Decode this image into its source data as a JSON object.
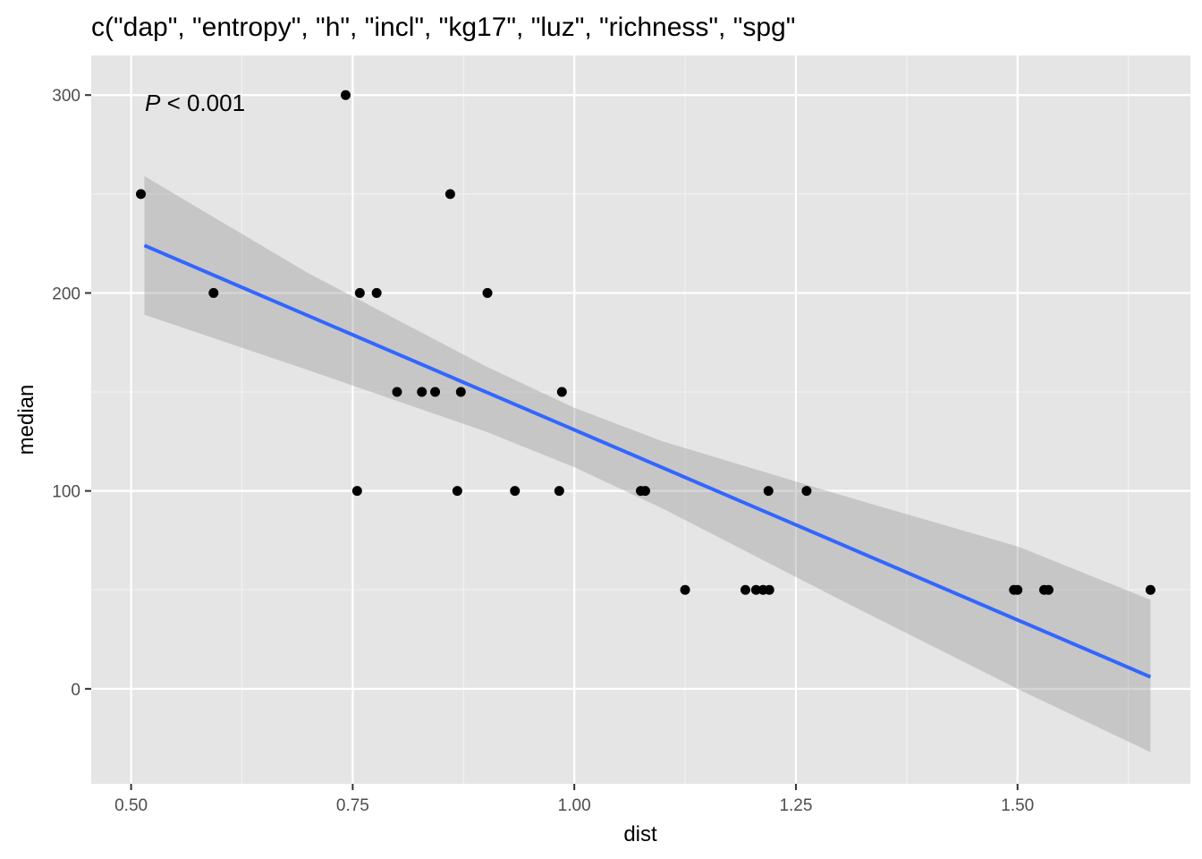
{
  "chart_data": {
    "type": "scatter",
    "title": "c(\"dap\", \"entropy\", \"h\", \"incl\", \"kg17\", \"luz\", \"richness\", \"spg\"",
    "xlabel": "dist",
    "ylabel": "median",
    "xlim": [
      0.455,
      1.695
    ],
    "ylim": [
      -48,
      320
    ],
    "x_ticks": [
      0.5,
      0.75,
      1.0,
      1.25,
      1.5
    ],
    "x_tick_labels": [
      "0.50",
      "0.75",
      "1.00",
      "1.25",
      "1.50"
    ],
    "y_ticks": [
      0,
      100,
      200,
      300
    ],
    "y_tick_labels": [
      "0",
      "100",
      "200",
      "300"
    ],
    "grid": true,
    "background": "#e5e5e5",
    "annotation": {
      "italic": "P",
      "text": " < 0.001",
      "x": 0.52,
      "y": 293
    },
    "points": [
      {
        "x": 0.511,
        "y": 250
      },
      {
        "x": 0.593,
        "y": 200
      },
      {
        "x": 0.742,
        "y": 300
      },
      {
        "x": 0.755,
        "y": 100
      },
      {
        "x": 0.758,
        "y": 200
      },
      {
        "x": 0.777,
        "y": 200
      },
      {
        "x": 0.8,
        "y": 150
      },
      {
        "x": 0.828,
        "y": 150
      },
      {
        "x": 0.843,
        "y": 150
      },
      {
        "x": 0.86,
        "y": 250
      },
      {
        "x": 0.868,
        "y": 100
      },
      {
        "x": 0.872,
        "y": 150
      },
      {
        "x": 0.902,
        "y": 200
      },
      {
        "x": 0.933,
        "y": 100
      },
      {
        "x": 0.983,
        "y": 100
      },
      {
        "x": 0.986,
        "y": 150
      },
      {
        "x": 1.075,
        "y": 100
      },
      {
        "x": 1.08,
        "y": 100
      },
      {
        "x": 1.125,
        "y": 50
      },
      {
        "x": 1.193,
        "y": 50
      },
      {
        "x": 1.205,
        "y": 50
      },
      {
        "x": 1.213,
        "y": 50
      },
      {
        "x": 1.22,
        "y": 50
      },
      {
        "x": 1.219,
        "y": 100
      },
      {
        "x": 1.262,
        "y": 100
      },
      {
        "x": 1.496,
        "y": 50
      },
      {
        "x": 1.5,
        "y": 50
      },
      {
        "x": 1.53,
        "y": 50
      },
      {
        "x": 1.535,
        "y": 50
      },
      {
        "x": 1.65,
        "y": 50
      }
    ],
    "fit_line": {
      "color": "#3366ff",
      "x": [
        0.515,
        1.65
      ],
      "y": [
        224,
        6
      ]
    },
    "confidence_band": {
      "color": "#999999",
      "x": [
        0.515,
        0.7,
        0.9,
        1.0,
        1.1,
        1.3,
        1.5,
        1.65
      ],
      "upper": [
        259,
        210,
        163,
        142,
        125,
        98,
        72,
        45
      ],
      "lower": [
        189,
        161,
        130,
        112,
        91,
        45,
        0,
        -32
      ]
    }
  }
}
